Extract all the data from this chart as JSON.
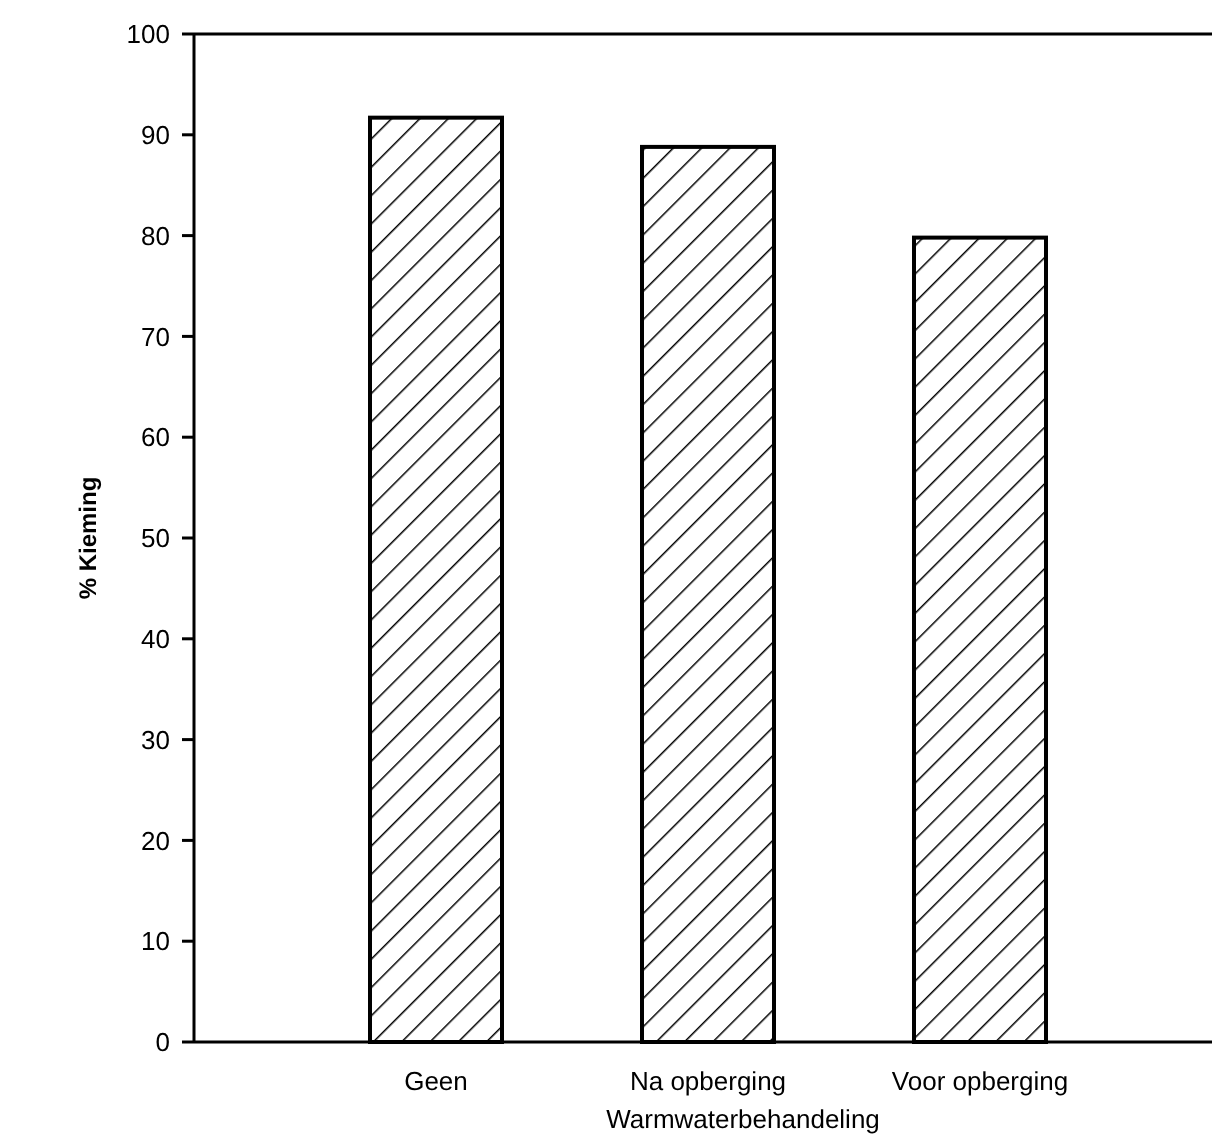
{
  "chart_data": {
    "type": "bar",
    "xlabel": "Warmwaterbehandeling",
    "ylabel": "% Kieming",
    "categories": [
      "Geen",
      "Na opberging",
      "Voor opberging"
    ],
    "values": [
      91.7,
      88.8,
      79.8
    ],
    "color": "#000000",
    "ylim": [
      0,
      100
    ],
    "yticks": [
      0,
      10,
      20,
      30,
      40,
      50,
      60,
      70,
      80,
      90,
      100
    ],
    "grid": false
  }
}
